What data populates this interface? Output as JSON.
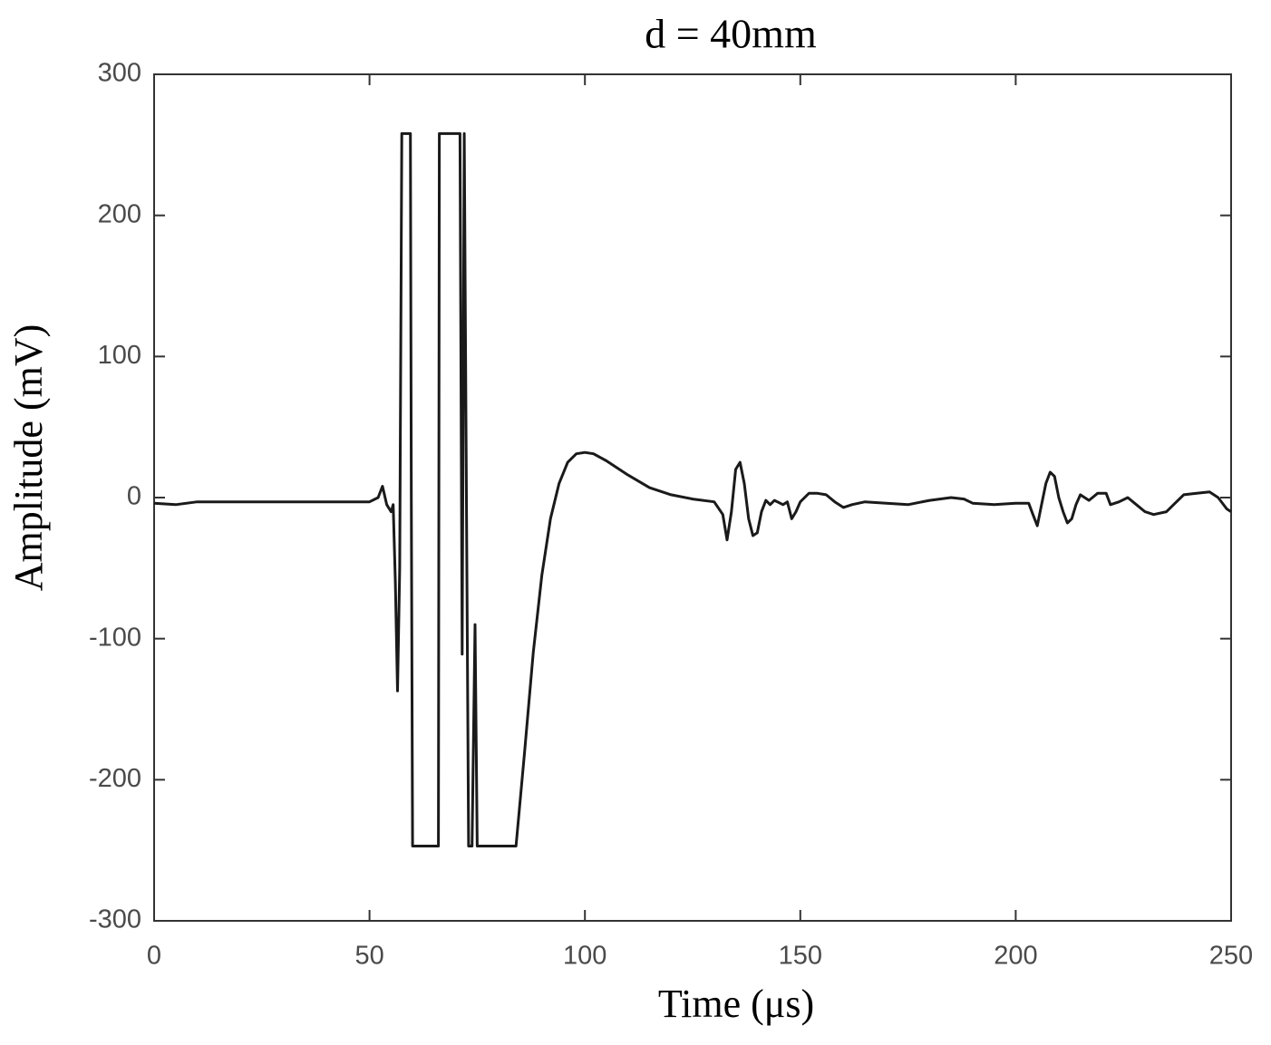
{
  "chart_data": {
    "type": "line",
    "title": "d = 40mm",
    "x_label": "Time (μs)",
    "y_label": "Amplitude (mV)",
    "color": "#1a1a1a",
    "x": [
      0,
      5,
      10,
      20,
      30,
      40,
      50,
      52,
      53,
      54,
      55,
      55.5,
      56,
      56.5,
      57,
      57.5,
      59.5,
      59.7,
      60,
      66,
      66.2,
      71,
      71.5,
      72,
      72.5,
      73,
      73.8,
      74.5,
      75,
      84,
      86,
      88,
      90,
      92,
      94,
      96,
      98,
      100,
      102,
      105,
      110,
      115,
      120,
      125,
      130,
      132,
      133,
      134,
      135,
      136,
      137,
      138,
      139,
      140,
      141,
      142,
      143,
      144,
      146,
      147,
      148,
      149,
      150,
      152,
      154,
      156,
      158,
      160,
      162,
      165,
      170,
      175,
      180,
      185,
      188,
      190,
      195,
      200,
      203,
      204,
      205,
      206,
      207,
      208,
      209,
      210,
      211,
      212,
      213,
      214,
      215,
      217,
      219,
      221,
      222,
      224,
      226,
      228,
      230,
      232,
      235,
      237,
      239,
      242,
      245,
      247,
      249,
      250
    ],
    "values": [
      -4,
      -5,
      -3,
      -3,
      -3,
      -3,
      -3,
      0,
      8,
      -5,
      -10,
      -5,
      -60,
      -137,
      -50,
      258,
      258,
      0,
      -247,
      -247,
      258,
      258,
      -111,
      258,
      0,
      -247,
      -247,
      -90,
      -247,
      -247,
      -180,
      -110,
      -55,
      -15,
      10,
      25,
      31,
      32,
      31,
      26,
      16,
      7,
      2,
      -1,
      -3,
      -12,
      -30,
      -10,
      20,
      25,
      10,
      -15,
      -27,
      -25,
      -10,
      -2,
      -5,
      -2,
      -5,
      -3,
      -15,
      -10,
      -3,
      3,
      3,
      2,
      -3,
      -7,
      -5,
      -3,
      -4,
      -5,
      -2,
      0,
      -1,
      -4,
      -5,
      -4,
      -4,
      -12,
      -20,
      -5,
      10,
      18,
      15,
      0,
      -10,
      -18,
      -15,
      -5,
      2,
      -2,
      3,
      3,
      -5,
      -3,
      0,
      -5,
      -10,
      -12,
      -10,
      -4,
      2,
      3,
      4,
      0,
      -8,
      -10
    ],
    "xlim": [
      0,
      250
    ],
    "xticks": [
      0,
      50,
      100,
      150,
      200,
      250
    ],
    "ylim": [
      -300,
      300
    ],
    "yticks": [
      -300,
      -200,
      -100,
      0,
      100,
      200,
      300
    ]
  }
}
